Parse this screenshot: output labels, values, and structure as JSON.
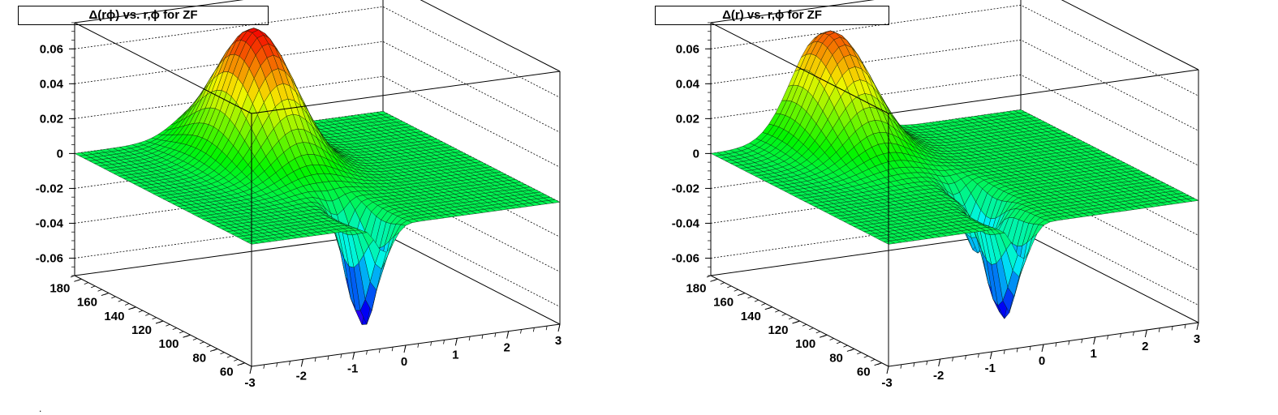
{
  "chart_data": [
    {
      "type": "surface3d",
      "title": "Δ(rϕ) vs. r,ϕ for ZF",
      "xlabel": "",
      "ylabel": "",
      "zlabel": "",
      "x_axis": {
        "range": [
          -3,
          3
        ],
        "ticks": [
          -3,
          -2,
          -1,
          0,
          1,
          2,
          3
        ],
        "tick_labels": [
          "-3",
          "-2",
          "-1",
          "0",
          "1",
          "2",
          "3"
        ]
      },
      "y_axis": {
        "range": [
          55,
          185
        ],
        "ticks": [
          60,
          80,
          100,
          120,
          140,
          160,
          180
        ],
        "tick_labels": [
          "60",
          "80",
          "100",
          "120",
          "140",
          "160",
          "180"
        ]
      },
      "z_axis": {
        "range": [
          -0.07,
          0.075
        ],
        "ticks": [
          -0.06,
          -0.04,
          -0.02,
          0,
          0.02,
          0.04,
          0.06
        ],
        "tick_labels": [
          "-0.06",
          "-0.04",
          "-0.02",
          "0",
          "0.02",
          "0.04",
          "0.06"
        ]
      },
      "grid": true,
      "colormap": "rainbow",
      "surface_features": [
        {
          "kind": "peak",
          "phi": -0.4,
          "r": 150,
          "dz": 0.075
        },
        {
          "kind": "dip",
          "phi": -0.4,
          "r": 72,
          "dz": -0.065
        }
      ]
    },
    {
      "type": "surface3d",
      "title": "Δ(r) vs. r,ϕ for ZF",
      "xlabel": "",
      "ylabel": "",
      "zlabel": "",
      "x_axis": {
        "range": [
          -3,
          3
        ],
        "ticks": [
          -3,
          -2,
          -1,
          0,
          1,
          2,
          3
        ],
        "tick_labels": [
          "-3",
          "-2",
          "-1",
          "0",
          "1",
          "2",
          "3"
        ]
      },
      "y_axis": {
        "range": [
          55,
          185
        ],
        "ticks": [
          60,
          80,
          100,
          120,
          140,
          160,
          180
        ],
        "tick_labels": [
          "60",
          "80",
          "100",
          "120",
          "140",
          "160",
          "180"
        ]
      },
      "z_axis": {
        "range": [
          -0.07,
          0.075
        ],
        "ticks": [
          -0.06,
          -0.04,
          -0.02,
          0,
          0.02,
          0.04,
          0.06
        ],
        "tick_labels": [
          "-0.06",
          "-0.04",
          "-0.02",
          "0",
          "0.02",
          "0.04",
          "0.06"
        ]
      },
      "grid": true,
      "colormap": "rainbow",
      "surface_features": [
        {
          "kind": "peak",
          "phi": -0.9,
          "r": 175,
          "dz": 0.065
        },
        {
          "kind": "dip",
          "phi": -0.1,
          "r": 100,
          "dz": -0.035
        },
        {
          "kind": "dip",
          "phi": -0.4,
          "r": 70,
          "dz": -0.06
        }
      ]
    }
  ],
  "footer_mark": "."
}
